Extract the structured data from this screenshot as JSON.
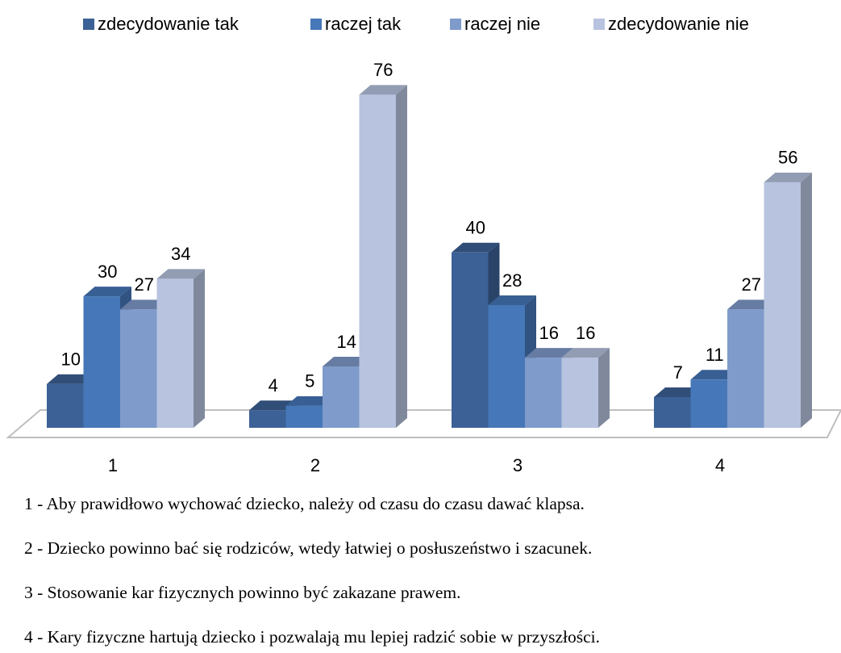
{
  "chart_data": {
    "type": "bar3d",
    "categories": [
      "1",
      "2",
      "3",
      "4"
    ],
    "series": [
      {
        "name": "zdecydowanie tak",
        "color": "#3c6196",
        "values": [
          10,
          4,
          40,
          7
        ]
      },
      {
        "name": "raczej tak",
        "color": "#4677b8",
        "values": [
          30,
          5,
          28,
          11
        ]
      },
      {
        "name": "raczej nie",
        "color": "#7f9bcb",
        "values": [
          27,
          14,
          16,
          27
        ]
      },
      {
        "name": "zdecydowanie nie",
        "color": "#b7c3df",
        "values": [
          34,
          76,
          16,
          56
        ]
      }
    ],
    "legend": "top",
    "notes": [
      "1 - Aby prawidłowo wychować dziecko, należy od czasu do czasu dawać klapsa.",
      "2 - Dziecko powinno bać się rodziców, wtedy łatwiej o posłuszeństwo i szacunek.",
      "3 - Stosowanie kar fizycznych powinno być zakazane prawem.",
      "4 - Kary fizyczne hartują dziecko i pozwalają mu lepiej radzić sobie w przyszłości."
    ]
  }
}
